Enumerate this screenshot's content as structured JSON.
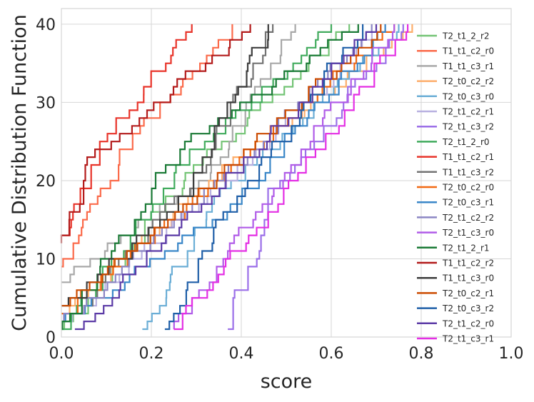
{
  "chart_data": {
    "type": "line",
    "subtype": "step-cdf",
    "title": "",
    "xlabel": "score",
    "ylabel": "Cumulative Distribution Function",
    "xlim": [
      0.0,
      1.0
    ],
    "ylim": [
      0,
      42
    ],
    "xticks": [
      "0.0",
      "0.2",
      "0.4",
      "0.6",
      "0.8",
      "1.0"
    ],
    "yticks": [
      "0",
      "10",
      "20",
      "30",
      "40"
    ],
    "grid": true,
    "legend_position": "right",
    "series": [
      {
        "name": "T2_t1_2_r2",
        "color": "#74c476",
        "start": 0.0,
        "start_count": 1,
        "mid_x": 0.3,
        "mid_y": 22,
        "end": 0.64
      },
      {
        "name": "T1_t1_c2_r0",
        "color": "#fb6a4a",
        "start": 0.0,
        "start_count": 9,
        "mid_x": 0.14,
        "mid_y": 24,
        "end": 0.38
      },
      {
        "name": "T1_t1_c3_r1",
        "color": "#a8a8a8",
        "start": 0.0,
        "start_count": 7,
        "mid_x": 0.34,
        "mid_y": 22,
        "end": 0.52
      },
      {
        "name": "T2_t0_c2_r2",
        "color": "#fdae6b",
        "start": 0.0,
        "start_count": 3,
        "mid_x": 0.36,
        "mid_y": 22,
        "end": 0.78
      },
      {
        "name": "T2_t0_c3_r0",
        "color": "#6baed6",
        "start": 0.18,
        "start_count": 1,
        "mid_x": 0.34,
        "mid_y": 18,
        "end": 0.75
      },
      {
        "name": "T2_t1_c2_r1",
        "color": "#b8b0e0",
        "start": 0.0,
        "start_count": 2,
        "mid_x": 0.32,
        "mid_y": 18,
        "end": 0.72
      },
      {
        "name": "T2_t1_c3_r2",
        "color": "#9b6fe8",
        "start": 0.37,
        "start_count": 1,
        "mid_x": 0.46,
        "mid_y": 18,
        "end": 0.76
      },
      {
        "name": "T2_t1_2_r0",
        "color": "#41ab5d",
        "start": 0.0,
        "start_count": 1,
        "mid_x": 0.26,
        "mid_y": 22,
        "end": 0.6
      },
      {
        "name": "T1_t1_c2_r1",
        "color": "#e8342a",
        "start": 0.0,
        "start_count": 13,
        "mid_x": 0.08,
        "mid_y": 24,
        "end": 0.29
      },
      {
        "name": "T1_t1_c3_r2",
        "color": "#737373",
        "start": 0.02,
        "start_count": 3,
        "mid_x": 0.28,
        "mid_y": 19,
        "end": 0.47
      },
      {
        "name": "T2_t0_c2_r0",
        "color": "#f16913",
        "start": 0.0,
        "start_count": 3,
        "mid_x": 0.32,
        "mid_y": 19,
        "end": 0.74
      },
      {
        "name": "T2_t0_c3_r1",
        "color": "#3a87c8",
        "start": 0.0,
        "start_count": 2,
        "mid_x": 0.38,
        "mid_y": 17,
        "end": 0.72
      },
      {
        "name": "T2_t1_c2_r2",
        "color": "#8c86c4",
        "start": 0.0,
        "start_count": 2,
        "mid_x": 0.33,
        "mid_y": 19,
        "end": 0.69
      },
      {
        "name": "T2_t1_c3_r0",
        "color": "#b05ce8",
        "start": 0.25,
        "start_count": 1,
        "mid_x": 0.44,
        "mid_y": 17,
        "end": 0.74
      },
      {
        "name": "T2_t1_2_r1",
        "color": "#1a7a36",
        "start": 0.0,
        "start_count": 1,
        "mid_x": 0.27,
        "mid_y": 25,
        "end": 0.66
      },
      {
        "name": "T1_t1_c2_r2",
        "color": "#b31b1b",
        "start": 0.0,
        "start_count": 12,
        "mid_x": 0.06,
        "mid_y": 23,
        "end": 0.42
      },
      {
        "name": "T1_t1_c3_r0",
        "color": "#3d3d3d",
        "start": 0.0,
        "start_count": 4,
        "mid_x": 0.26,
        "mid_y": 17,
        "end": 0.46
      },
      {
        "name": "T2_t0_c2_r1",
        "color": "#cc4c02",
        "start": 0.0,
        "start_count": 4,
        "mid_x": 0.3,
        "mid_y": 18,
        "end": 0.71
      },
      {
        "name": "T2_t0_c3_r2",
        "color": "#1f5fa8",
        "start": 0.23,
        "start_count": 1,
        "mid_x": 0.37,
        "mid_y": 16,
        "end": 0.67
      },
      {
        "name": "T2_t1_c2_r0",
        "color": "#5b3aa6",
        "start": 0.03,
        "start_count": 1,
        "mid_x": 0.32,
        "mid_y": 18,
        "end": 0.7
      },
      {
        "name": "T2_t1_c3_r1",
        "color": "#e42fe4",
        "start": 0.25,
        "start_count": 1,
        "mid_x": 0.46,
        "mid_y": 16,
        "end": 0.77
      }
    ]
  }
}
